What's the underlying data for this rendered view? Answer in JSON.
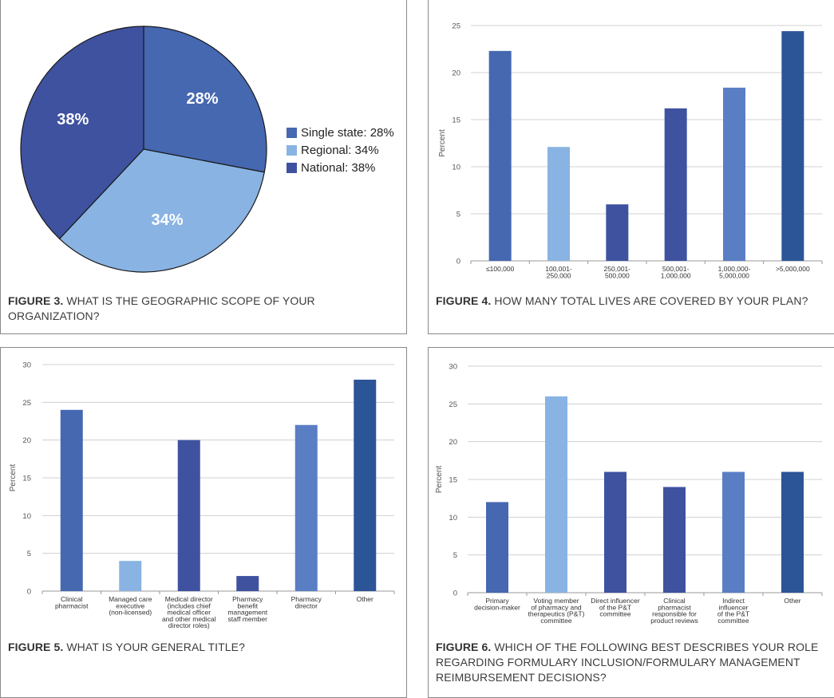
{
  "colors": {
    "blue": "#4568b1",
    "light_blue": "#89b3e3",
    "indigo": "#3f52a0",
    "steel": "#5a7ec4",
    "navy": "#2c5597",
    "grid": "#d0d0d0",
    "axis_text": "#555555"
  },
  "chart_data": [
    {
      "id": "figure3",
      "type": "pie",
      "caption_prefix": "FIGURE 3.",
      "caption_text": "WHAT IS THE GEOGRAPHIC SCOPE OF YOUR ORGANIZATION?",
      "slices": [
        {
          "label": "Single state",
          "value": 28,
          "text": "28%",
          "legend": "Single state: 28%",
          "color": "#4568b1"
        },
        {
          "label": "Regional",
          "value": 34,
          "text": "34%",
          "legend": "Regional: 34%",
          "color": "#89b3e3"
        },
        {
          "label": "National",
          "value": 38,
          "text": "38%",
          "legend": "National: 38%",
          "color": "#3f52a0"
        }
      ],
      "legend_position": "right"
    },
    {
      "id": "figure4",
      "type": "bar",
      "caption_prefix": "FIGURE 4.",
      "caption_text": "HOW MANY TOTAL LIVES ARE COVERED BY YOUR PLAN?",
      "ylabel": "Percent",
      "ylim": [
        0,
        25
      ],
      "yticks": [
        0,
        5,
        10,
        15,
        20,
        25
      ],
      "categories": [
        [
          "≤100,000"
        ],
        [
          "100,001-",
          "250,000"
        ],
        [
          "250,001-",
          "500,000"
        ],
        [
          "500,001-",
          "1,000,000"
        ],
        [
          "1,000,000-",
          "5,000,000"
        ],
        [
          ">5,000,000"
        ]
      ],
      "values": [
        22.3,
        12.1,
        6.0,
        16.2,
        18.4,
        24.4
      ],
      "colors": [
        "#4568b1",
        "#89b3e3",
        "#3f52a0",
        "#3f52a0",
        "#5a7ec4",
        "#2c5597"
      ]
    },
    {
      "id": "figure5",
      "type": "bar",
      "caption_prefix": "FIGURE 5.",
      "caption_text": "WHAT IS YOUR GENERAL TITLE?",
      "ylabel": "Percent",
      "ylim": [
        0,
        30
      ],
      "yticks": [
        0,
        5,
        10,
        15,
        20,
        25,
        30
      ],
      "categories": [
        [
          "Clinical",
          "pharmacist"
        ],
        [
          "Managed care",
          "executive",
          "(non-licensed)"
        ],
        [
          "Medical director",
          "(includes chief",
          "medical officer",
          "and other medical",
          "director roles)"
        ],
        [
          "Pharmacy",
          "benefit",
          "management",
          "staff member"
        ],
        [
          "Pharmacy",
          "director"
        ],
        [
          "Other"
        ]
      ],
      "values": [
        24,
        4,
        20,
        2,
        22,
        28
      ],
      "colors": [
        "#4568b1",
        "#89b3e3",
        "#3f52a0",
        "#3f52a0",
        "#5a7ec4",
        "#2c5597"
      ]
    },
    {
      "id": "figure6",
      "type": "bar",
      "caption_prefix": "FIGURE 6.",
      "caption_text": "WHICH OF THE FOLLOWING BEST DESCRIBES YOUR ROLE REGARDING FORMULARY INCLUSION/FORMULARY MANAGEMENT REIMBURSEMENT DECISIONS?",
      "ylabel": "Percent",
      "ylim": [
        0,
        30
      ],
      "yticks": [
        0,
        5,
        10,
        15,
        20,
        25,
        30
      ],
      "categories": [
        [
          "Primary",
          "decision-maker"
        ],
        [
          "Voting member",
          "of pharmacy and",
          "therapeutics (P&T)",
          "committee"
        ],
        [
          "Direct influencer",
          "of the P&T",
          "committee"
        ],
        [
          "Clinical",
          "pharmacist",
          "responsible for",
          "product reviews"
        ],
        [
          "Indirect",
          "influencer",
          "of the P&T",
          "committee"
        ],
        [
          "Other"
        ]
      ],
      "values": [
        12,
        26,
        16,
        14,
        16,
        16
      ],
      "colors": [
        "#4568b1",
        "#89b3e3",
        "#3f52a0",
        "#3f52a0",
        "#5a7ec4",
        "#2c5597"
      ]
    }
  ]
}
